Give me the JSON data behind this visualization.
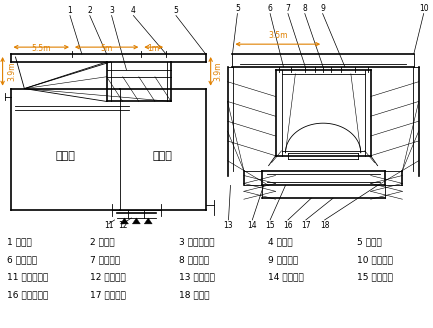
{
  "bg_color": "#ffffff",
  "legend_items": [
    [
      "1 后锚梁",
      "2 后锚杆",
      "3 桁架走行轨",
      "4 主桁架",
      "5 前吊梁"
    ],
    [
      "6 内模吊杆",
      "7 主桁平联",
      "8 底模吊杆",
      "9 外模吊杆",
      "10 顶对拉杆"
    ],
    [
      "11 底模后锚杆",
      "12 底模纵梁",
      "13 外模滑道",
      "14 内模滑道",
      "15 底模滑道"
    ],
    [
      "16 腹板对拉杆",
      "17 底对拉杆",
      "18 外侧模",
      "",
      ""
    ]
  ],
  "dim_col": "#E08000",
  "col": "#000000"
}
